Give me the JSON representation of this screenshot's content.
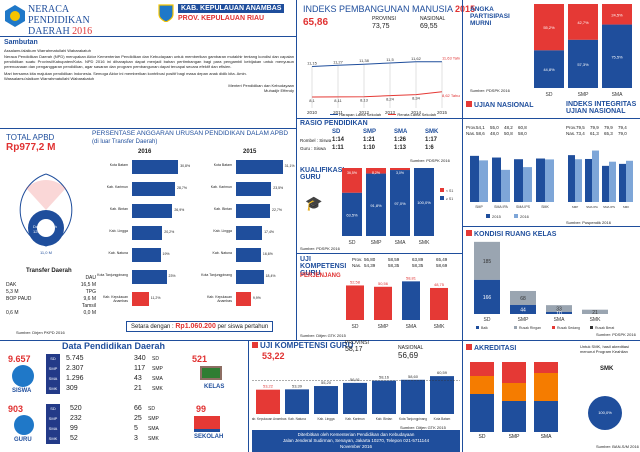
{
  "header": {
    "title_line1": "NERACA",
    "title_line2": "PENDIDIKAN",
    "title_line3": "DAERAH",
    "year": "2016",
    "region": "KAB. KEPULAUAN ANAMBAS",
    "province": "PROV. KEPULAUAN RIAU"
  },
  "sambutan": {
    "title": "Sambutan",
    "greeting": "Assalamu'alaikum Warrahmatullahi Wabarakatuh",
    "para1": "Neraca Pendidikan Daerah (NPD) merupakan Aktor Kementerian Pendidikan dan Kebudayaan untuk memberikan gambaran mutakhir tentang kondisi dan capaian pendidikan suatu Provinsi/Kabupaten/Kota. NPD 2016 ini diharapkan dapat menjadi bahan pertimbangan bagi para pengambil kebijakan untuk menyusun perencanaan dan penganggaran pendidikan, agar sasaran dan program pembangunan dapat tercapai secara efektif dan efisien.",
    "para2": "Mari bersama kita majukan pendidikan Indonesia. Semoga Aktor ini memberikan kontribusi positif bagi masa depan anak didik kita. Amin.",
    "closing": "Wassalamu'alaikum Warrahmatullahi Wabarakatuh",
    "signature1": "Menteri Pendidikan dan Kebudayaan",
    "signature2": "Muhadjir Effendy"
  },
  "apbd": {
    "title": "TOTAL APBD",
    "value": "Rp977,2 M",
    "dana_daerah_label": "Dana Daerah",
    "dana_daerah_value": "124,6 M",
    "transfer_value": "11,0 M",
    "transfer_label": "Transfer Daerah",
    "legend": [
      {
        "k": "DAK",
        "v": "5,3 M"
      },
      {
        "k": "BOP PAUD",
        "v": "0,6 M"
      },
      {
        "k": "DAU",
        "v": "16,5 M"
      },
      {
        "k": "TPG",
        "v": "9,6 M"
      },
      {
        "k": "Tamsil",
        "v": "0,0 M"
      }
    ],
    "source": "Sumber: Dirjen PKPD 2016"
  },
  "anggaran": {
    "title": "PERSENTASE ANGGARAN URUSAN PENDIDIKAN DALAM APBD",
    "subtitle": "(di luar Transfer Daerah)",
    "year_a": "2016",
    "year_b": "2015",
    "rows_2016": [
      {
        "name": "Kota Batam",
        "v": 30.8
      },
      {
        "name": "Kab. Karimun",
        "v": 28.7
      },
      {
        "name": "Kab. Bintan",
        "v": 26.9
      },
      {
        "name": "Kab. Lingga",
        "v": 20.2
      },
      {
        "name": "Kab. Natuna",
        "v": 19.0
      },
      {
        "name": "Kota Tanjungpinang",
        "v": 23.0
      },
      {
        "name": "Kab. Kepulauan Anambas",
        "v": 11.2
      }
    ],
    "rows_2015": [
      {
        "name": "Kota Batam",
        "v": 31.1
      },
      {
        "name": "Kab. Karimun",
        "v": 23.5
      },
      {
        "name": "Kab. Bintan",
        "v": 22.7
      },
      {
        "name": "Kab. Lingga",
        "v": 17.4
      },
      {
        "name": "Kab. Natuna",
        "v": 16.6
      },
      {
        "name": "Kota Tanjungpinang",
        "v": 18.4
      },
      {
        "name": "Kab. Kepulauan Anambas",
        "v": 9.9
      }
    ],
    "footer_prefix": "Setara dengan :",
    "footer_value": "Rp1.060.200",
    "footer_suffix": "per siswa pertahun"
  },
  "ipm": {
    "title": "INDEKS PEMBANGUNAN MANUSIA",
    "year": "2015",
    "value": "65,86",
    "prov_label": "PROVINSI",
    "prov_value": "73,75",
    "nat_label": "NASIONAL",
    "nat_value": "69,55",
    "years": [
      "2010",
      "2011",
      "2012",
      "2013",
      "2014",
      "2015"
    ],
    "harapan": [
      11.15,
      11.27,
      11.38,
      11.5,
      11.62,
      11.63
    ],
    "rata": [
      8.1,
      8.11,
      8.13,
      8.24,
      8.34,
      8.62
    ],
    "harapan_labels": [
      "11,15",
      "11,27",
      "11,38",
      "11,5",
      "11,62",
      "11,63 Tahun"
    ],
    "rata_labels": [
      "8,1",
      "8,11",
      "8,13",
      "8,24",
      "8,34",
      "8,62 Tahun"
    ],
    "legend1": "Harapan Lama Sekolah",
    "legend2": "Rerata Lama Sekolah"
  },
  "apm": {
    "title": "ANGKA PARTISIPASI MURNI",
    "cats": [
      "SD",
      "SMP",
      "SMA"
    ],
    "blue": [
      44.8,
      57.3,
      75.5
    ],
    "red": [
      55.2,
      42.7,
      24.5
    ],
    "blue_labels": [
      "44,8%",
      "57,3%",
      "75,5%"
    ],
    "red_labels": [
      "55,2%",
      "42,7%",
      "24,5%"
    ],
    "source": "Sumber: PDSPK 2016"
  },
  "rasio": {
    "title": "RASIO PENDIDIKAN",
    "heads": [
      "SD",
      "SMP",
      "SMA",
      "SMK"
    ],
    "rombel_label": "Rombel : Siswa",
    "guru_label": "Guru : Siswa",
    "rombel": [
      "1:14",
      "1:21",
      "1:26",
      "1:17"
    ],
    "guru": [
      "1:11",
      "1:10",
      "1:13",
      "1:6"
    ],
    "source": "Sumber: PDSPK 2016"
  },
  "kualifikasi": {
    "title": "KUALIFIKASI GURU",
    "cats": [
      "SD",
      "SMP",
      "SMA",
      "SMK"
    ],
    "blue": [
      63.5,
      91.8,
      97.0,
      100.0
    ],
    "red": [
      36.5,
      8.2,
      3.0,
      0.0
    ],
    "blue_labels": [
      "63,5%",
      "91,8%",
      "97,0%",
      "100,0%"
    ],
    "red_labels": [
      "36,5%",
      "8,2%",
      "3,0%",
      ""
    ],
    "legend": [
      "< S1",
      "≥ S1"
    ],
    "source": "Sumber: PDSPK 2016"
  },
  "un": {
    "title": "UJIAN NASIONAL",
    "title2": "INDEKS INTEGRITAS UJIAN NASIONAL",
    "prov_row": [
      "54,1",
      "55,0",
      "48,2",
      "60,8"
    ],
    "nas_row": [
      "58,6",
      "48,0",
      "50,8",
      "58,0"
    ],
    "prov_row2": [
      "79,5",
      "79,9",
      "79,9",
      "79,4"
    ],
    "nas_row2": [
      "73,4",
      "61,3",
      "65,3",
      "79,0"
    ],
    "cats": [
      "SMP",
      "SMA IPA",
      "SMA IPS",
      "SMK"
    ],
    "cats2": [
      "SMP",
      "SMA IPA",
      "SMA IPS",
      "SMK"
    ],
    "v2015": [
      52.1,
      50.2,
      48.3,
      49.1
    ],
    "v2016": [
      47.0,
      36.3,
      39.4,
      48.1
    ],
    "i2015": [
      75.6,
      69.4,
      58.3,
      61.5
    ],
    "i2016": [
      69.0,
      83.0,
      65.0,
      66.5
    ],
    "legend": [
      "2015",
      "2016"
    ],
    "source": "Sumber: Puspendik 2016"
  },
  "ukg": {
    "title": "UJI KOMPETENSI GURU",
    "subtitle": "PERJENJANG",
    "prov_row": [
      "56,80",
      "58,59",
      "63,89",
      "65,49"
    ],
    "nas_row": [
      "54,39",
      "58,35",
      "58,35",
      "58,69"
    ],
    "cats": [
      "SD",
      "SMP",
      "SMA",
      "SMK"
    ],
    "values": [
      52.58,
      50.56,
      58.81,
      48.75
    ],
    "labels": [
      "52,58",
      "50,56",
      "58,81",
      "48,75"
    ],
    "source": "Sumber: Ditjen GTK 2015"
  },
  "ruang_kelas": {
    "title": "KONDISI RUANG KELAS",
    "cats": [
      "SD",
      "SMP",
      "SMA",
      "SMK"
    ],
    "baik": [
      166,
      44,
      10,
      0
    ],
    "rr": [
      15,
      23,
      10,
      0
    ],
    "rs": [
      185,
      68,
      33,
      21
    ],
    "labels_top": [
      "185",
      "68",
      "33",
      "21"
    ],
    "labels_bottom": [
      "166",
      "44",
      "10",
      ""
    ],
    "legend": [
      "Baik",
      "Rusak Ringan",
      "Rusak Sedang",
      "Rusak Berat"
    ],
    "source": "Sumber: PDSPK 2016"
  },
  "data_pendidikan": {
    "title": "Data Pendidikan Daerah",
    "siswa_total": "9.657",
    "siswa_label": "SISWA",
    "siswa_rows": [
      {
        "k": "SD",
        "v": "5.745"
      },
      {
        "k": "SMP",
        "v": "2.307"
      },
      {
        "k": "SMA",
        "v": "1.296"
      },
      {
        "k": "SMK",
        "v": "309"
      }
    ],
    "kelas_total": "521",
    "kelas_label": "KELAS",
    "kelas_rows": [
      {
        "v": "340",
        "k": "SD"
      },
      {
        "v": "117",
        "k": "SMP"
      },
      {
        "v": "43",
        "k": "SMA"
      },
      {
        "v": "21",
        "k": "SMK"
      }
    ],
    "guru_total": "903",
    "guru_label": "GURU",
    "guru_rows": [
      {
        "k": "SD",
        "v": "520"
      },
      {
        "k": "SMP",
        "v": "232"
      },
      {
        "k": "SMA",
        "v": "99"
      },
      {
        "k": "SMK",
        "v": "52"
      }
    ],
    "sekolah_total": "99",
    "sekolah_label": "SEKOLAH",
    "sekolah_rows": [
      {
        "v": "66",
        "k": "SD"
      },
      {
        "v": "25",
        "k": "SMP"
      },
      {
        "v": "5",
        "k": "SMA"
      },
      {
        "v": "3",
        "k": "SMK"
      }
    ]
  },
  "ukg_kab": {
    "title": "UJI KOMPETENSI GURU",
    "value": "53,22",
    "prov_label": "PROVINSI",
    "prov_value": "58,17",
    "nat_label": "NASIONAL",
    "nat_value": "56,69",
    "cats": [
      "Kab. Kepulauan Anambas",
      "Kab. Natuna",
      "Kab. Lingga",
      "Kab. Karimun",
      "Kab. Bintan",
      "Kota Tanjungpinang",
      "Kota Batam"
    ],
    "values": [
      53.22,
      53.39,
      55.2,
      56.91,
      58.16,
      58.6,
      60.59
    ],
    "labels": [
      "53,22",
      "53,39",
      "55,20",
      "56,91",
      "58,16",
      "58,60",
      "60,59"
    ],
    "source": "Sumber: Ditjen GTK 2015"
  },
  "footer": {
    "line1": "Diterbitkan oleh Kementerian Pendidikan dan Kebudayaan",
    "line2": "Jalan Jenderal Sudirman, Senayan, Jakarta 10270, Telepon 021-5711144",
    "line3": "November 2016"
  },
  "akreditasi": {
    "title": "AKREDITASI",
    "note": "Untuk SMK, hasil akreditasi menurut Program Keahlian",
    "cats": [
      "SD",
      "SMP",
      "SMA"
    ],
    "smk_label": "SMK",
    "smk_pct": "100,0%",
    "source": "Sumber: BAN-S/M 2016"
  },
  "colors": {
    "blue": "#1f4e9c",
    "red": "#e53935",
    "navy": "#233a88"
  }
}
